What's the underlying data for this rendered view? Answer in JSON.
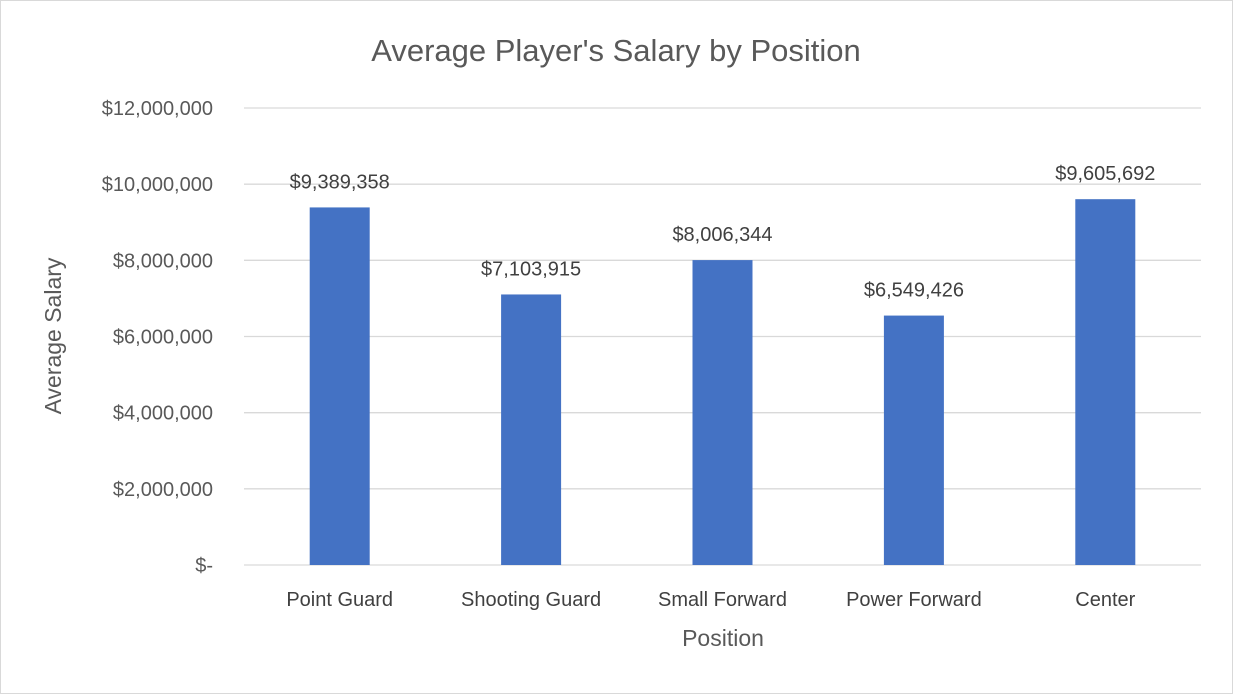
{
  "chart_data": {
    "type": "bar",
    "title": "Average Player's Salary by Position",
    "xlabel": "Position",
    "ylabel": "Average Salary",
    "categories": [
      "Point Guard",
      "Shooting Guard",
      "Small Forward",
      "Power Forward",
      "Center"
    ],
    "values": [
      9389358,
      7103915,
      8006344,
      6549426,
      9605692
    ],
    "data_labels": [
      "$9,389,358",
      "$7,103,915",
      "$8,006,344",
      "$6,549,426",
      "$9,605,692"
    ],
    "ylim": [
      0,
      12000000
    ],
    "yticks": [
      0,
      2000000,
      4000000,
      6000000,
      8000000,
      10000000,
      12000000
    ],
    "ytick_labels": [
      "$-",
      "$2,000,000",
      "$4,000,000",
      "$6,000,000",
      "$8,000,000",
      "$10,000,000",
      "$12,000,000"
    ],
    "grid": true,
    "legend": "none",
    "bar_color": "#4472C4"
  }
}
